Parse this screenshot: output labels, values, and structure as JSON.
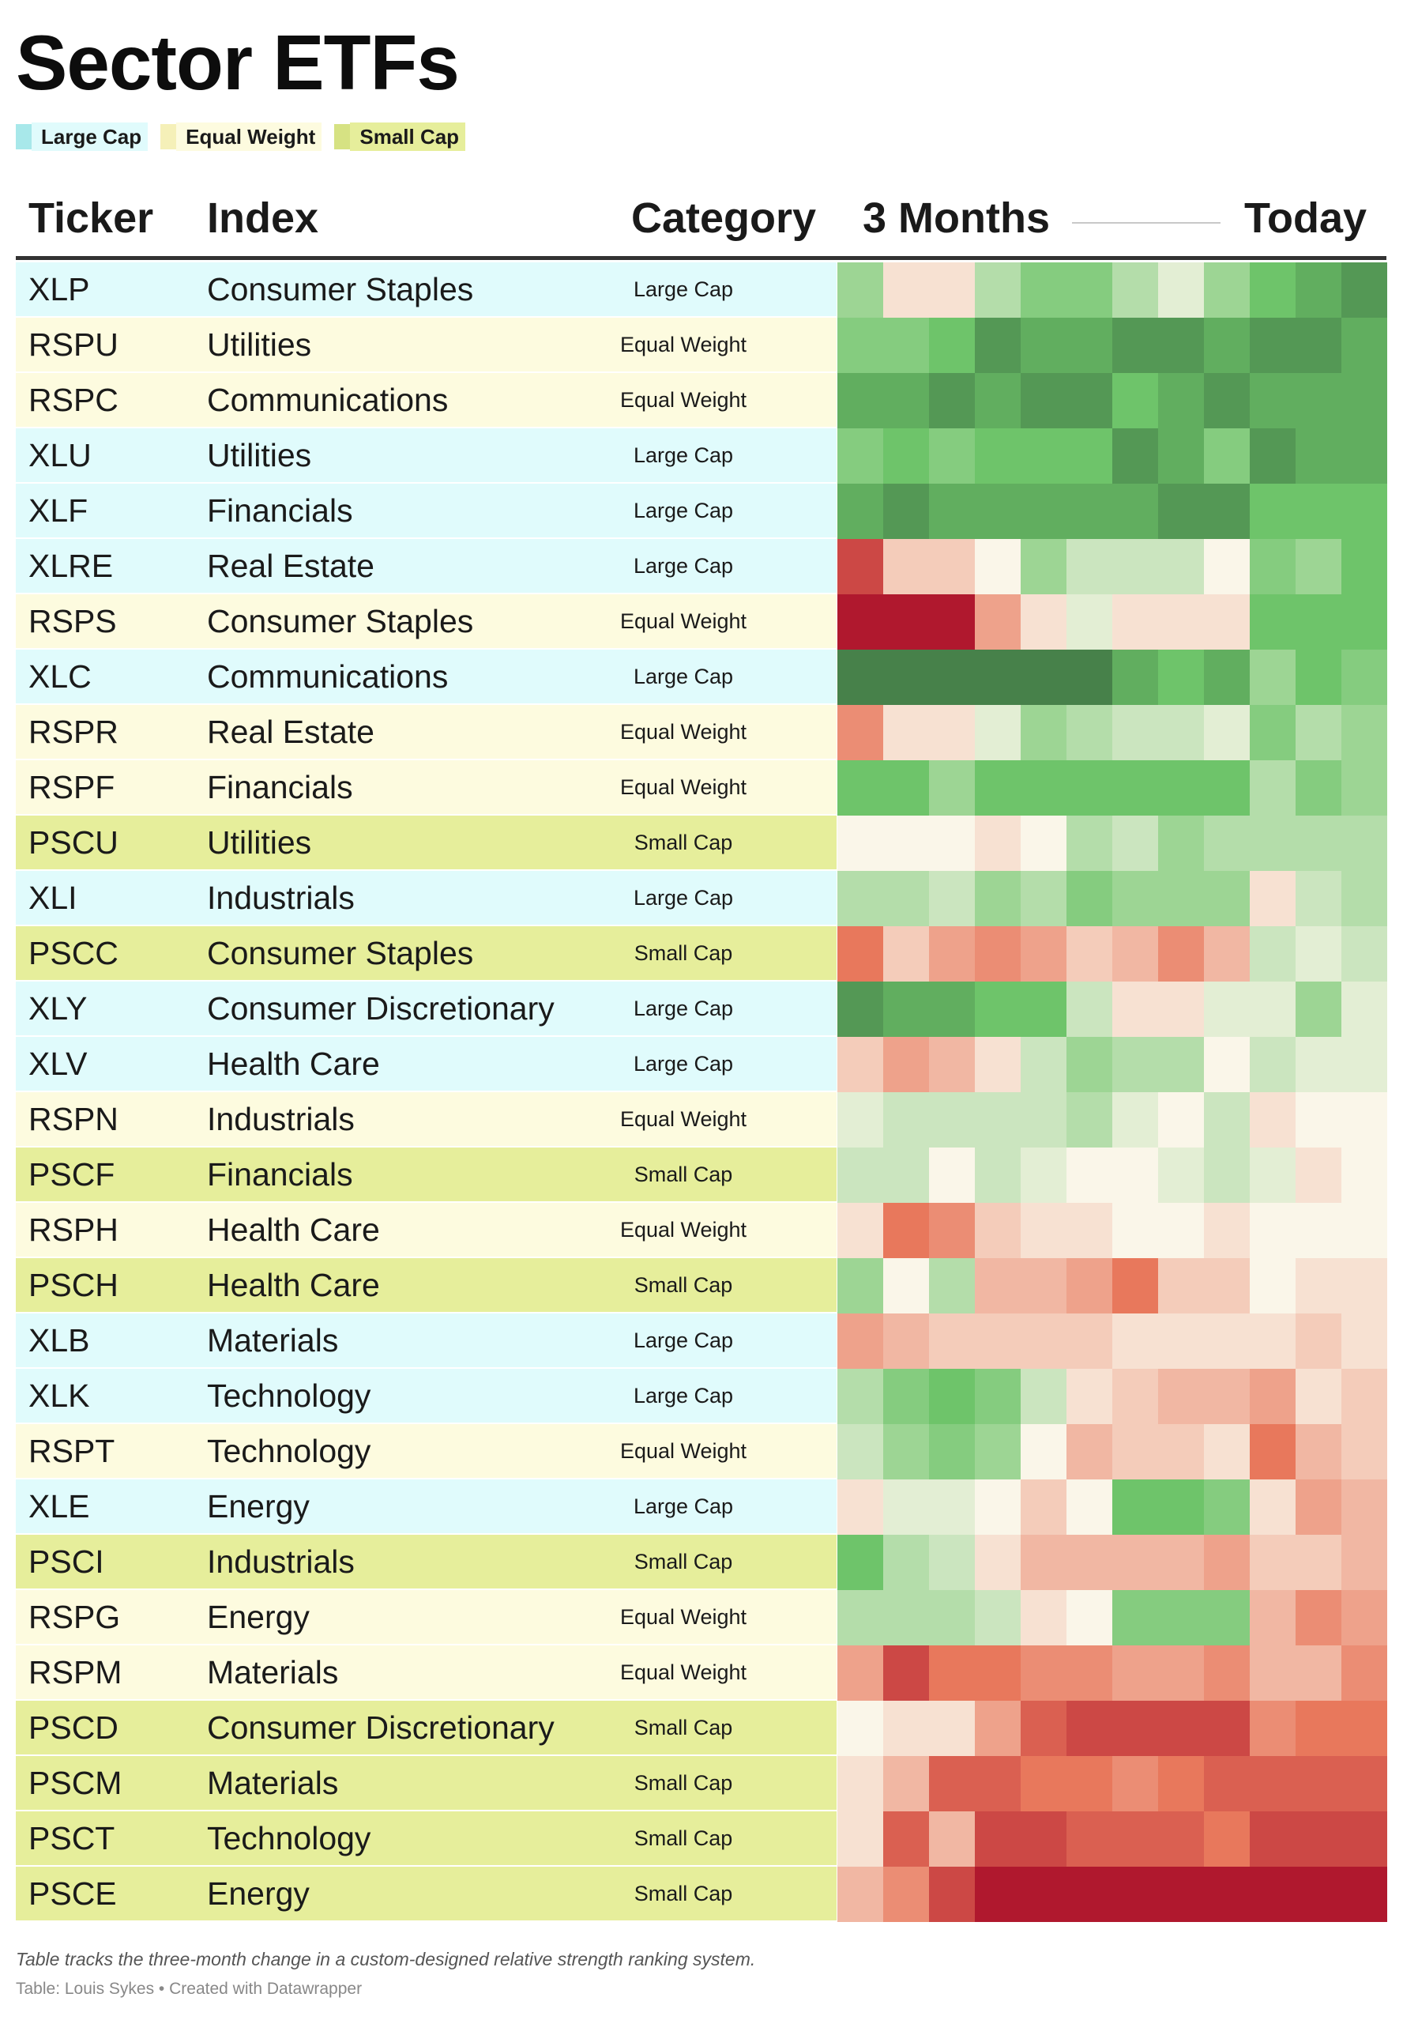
{
  "title": "Sector ETFs",
  "legend": [
    {
      "label": "Large Cap",
      "color": "#e0fbfc"
    },
    {
      "label": "Equal Weight",
      "color": "#fdfbdf"
    },
    {
      "label": "Small Cap",
      "color": "#e6ee9b"
    }
  ],
  "legend_swatch_colors": [
    "#a8e8ea",
    "#f5f0b8",
    "#d6e283"
  ],
  "columns": {
    "ticker": "Ticker",
    "index": "Index",
    "category": "Category",
    "start": "3 Months",
    "end": "Today"
  },
  "chart_data": {
    "type": "heatmap",
    "scale": "relative strength rank change over three months: green strongest, red weakest",
    "periods": 12,
    "rows": [
      {
        "ticker": "XLP",
        "index": "Consumer Staples",
        "category": "Large Cap",
        "values": [
          4,
          -1,
          -1,
          3,
          5,
          5,
          3,
          1,
          4,
          6,
          7,
          8
        ]
      },
      {
        "ticker": "RSPU",
        "index": "Utilities",
        "category": "Equal Weight",
        "values": [
          5,
          5,
          6,
          8,
          7,
          7,
          8,
          8,
          7,
          8,
          8,
          7
        ]
      },
      {
        "ticker": "RSPC",
        "index": "Communications",
        "category": "Equal Weight",
        "values": [
          7,
          7,
          8,
          7,
          8,
          8,
          6,
          7,
          8,
          7,
          7,
          7
        ]
      },
      {
        "ticker": "XLU",
        "index": "Utilities",
        "category": "Large Cap",
        "values": [
          5,
          6,
          5,
          6,
          6,
          6,
          8,
          7,
          5,
          8,
          7,
          7
        ]
      },
      {
        "ticker": "XLF",
        "index": "Financials",
        "category": "Large Cap",
        "values": [
          7,
          8,
          7,
          7,
          7,
          7,
          7,
          8,
          8,
          6,
          6,
          6
        ]
      },
      {
        "ticker": "XLRE",
        "index": "Real Estate",
        "category": "Large Cap",
        "values": [
          -8,
          -2,
          -2,
          0,
          4,
          2,
          2,
          2,
          0,
          5,
          4,
          6
        ]
      },
      {
        "ticker": "RSPS",
        "index": "Consumer Staples",
        "category": "Equal Weight",
        "values": [
          -10,
          -10,
          -10,
          -4,
          -1,
          1,
          -1,
          -1,
          -1,
          6,
          6,
          6
        ]
      },
      {
        "ticker": "XLC",
        "index": "Communications",
        "category": "Large Cap",
        "values": [
          9,
          9,
          9,
          9,
          9,
          9,
          7,
          6,
          7,
          4,
          6,
          5
        ]
      },
      {
        "ticker": "RSPR",
        "index": "Real Estate",
        "category": "Equal Weight",
        "values": [
          -5,
          -1,
          -1,
          1,
          4,
          3,
          2,
          2,
          1,
          5,
          3,
          4
        ]
      },
      {
        "ticker": "RSPF",
        "index": "Financials",
        "category": "Equal Weight",
        "values": [
          6,
          6,
          4,
          6,
          6,
          6,
          6,
          6,
          6,
          3,
          5,
          4
        ]
      },
      {
        "ticker": "PSCU",
        "index": "Utilities",
        "category": "Small Cap",
        "values": [
          0,
          0,
          0,
          -1,
          0,
          3,
          2,
          4,
          3,
          3,
          3,
          3
        ]
      },
      {
        "ticker": "XLI",
        "index": "Industrials",
        "category": "Large Cap",
        "values": [
          3,
          3,
          2,
          4,
          3,
          5,
          4,
          4,
          4,
          -1,
          2,
          3
        ]
      },
      {
        "ticker": "PSCC",
        "index": "Consumer Staples",
        "category": "Small Cap",
        "values": [
          -6,
          -2,
          -4,
          -5,
          -4,
          -2,
          -3,
          -5,
          -3,
          2,
          1,
          2
        ]
      },
      {
        "ticker": "XLY",
        "index": "Consumer Discretionary",
        "category": "Large Cap",
        "values": [
          8,
          7,
          7,
          6,
          6,
          2,
          -1,
          -1,
          1,
          1,
          4,
          1
        ]
      },
      {
        "ticker": "XLV",
        "index": "Health Care",
        "category": "Large Cap",
        "values": [
          -2,
          -4,
          -3,
          -1,
          2,
          4,
          3,
          3,
          0,
          2,
          1,
          1
        ]
      },
      {
        "ticker": "RSPN",
        "index": "Industrials",
        "category": "Equal Weight",
        "values": [
          1,
          2,
          2,
          2,
          2,
          3,
          1,
          0,
          2,
          -1,
          0,
          0
        ]
      },
      {
        "ticker": "PSCF",
        "index": "Financials",
        "category": "Small Cap",
        "values": [
          2,
          2,
          0,
          2,
          1,
          0,
          0,
          1,
          2,
          1,
          -1,
          0
        ]
      },
      {
        "ticker": "RSPH",
        "index": "Health Care",
        "category": "Equal Weight",
        "values": [
          -1,
          -6,
          -5,
          -2,
          -1,
          -1,
          0,
          0,
          -1,
          0,
          0,
          0
        ]
      },
      {
        "ticker": "PSCH",
        "index": "Health Care",
        "category": "Small Cap",
        "values": [
          4,
          0,
          3,
          -3,
          -3,
          -4,
          -6,
          -2,
          -2,
          0,
          -1,
          -1
        ]
      },
      {
        "ticker": "XLB",
        "index": "Materials",
        "category": "Large Cap",
        "values": [
          -4,
          -3,
          -2,
          -2,
          -2,
          -2,
          -1,
          -1,
          -1,
          -1,
          -2,
          -1
        ]
      },
      {
        "ticker": "XLK",
        "index": "Technology",
        "category": "Large Cap",
        "values": [
          3,
          5,
          6,
          5,
          2,
          -1,
          -2,
          -3,
          -3,
          -4,
          -1,
          -2
        ]
      },
      {
        "ticker": "RSPT",
        "index": "Technology",
        "category": "Equal Weight",
        "values": [
          2,
          4,
          5,
          4,
          0,
          -3,
          -2,
          -2,
          -1,
          -6,
          -3,
          -2
        ]
      },
      {
        "ticker": "XLE",
        "index": "Energy",
        "category": "Large Cap",
        "values": [
          -1,
          1,
          1,
          0,
          -2,
          0,
          6,
          6,
          5,
          -1,
          -4,
          -3
        ]
      },
      {
        "ticker": "PSCI",
        "index": "Industrials",
        "category": "Small Cap",
        "values": [
          6,
          3,
          2,
          -1,
          -3,
          -3,
          -3,
          -3,
          -4,
          -2,
          -2,
          -3
        ]
      },
      {
        "ticker": "RSPG",
        "index": "Energy",
        "category": "Equal Weight",
        "values": [
          3,
          3,
          3,
          2,
          -1,
          0,
          5,
          5,
          5,
          -3,
          -5,
          -4
        ]
      },
      {
        "ticker": "RSPM",
        "index": "Materials",
        "category": "Equal Weight",
        "values": [
          -4,
          -8,
          -6,
          -6,
          -5,
          -5,
          -4,
          -4,
          -5,
          -3,
          -3,
          -5
        ]
      },
      {
        "ticker": "PSCD",
        "index": "Consumer Discretionary",
        "category": "Small Cap",
        "values": [
          0,
          -1,
          -1,
          -4,
          -7,
          -8,
          -8,
          -8,
          -8,
          -5,
          -6,
          -6
        ]
      },
      {
        "ticker": "PSCM",
        "index": "Materials",
        "category": "Small Cap",
        "values": [
          -1,
          -3,
          -7,
          -7,
          -6,
          -6,
          -5,
          -6,
          -7,
          -7,
          -7,
          -7
        ]
      },
      {
        "ticker": "PSCT",
        "index": "Technology",
        "category": "Small Cap",
        "values": [
          -1,
          -7,
          -3,
          -8,
          -8,
          -7,
          -7,
          -7,
          -6,
          -8,
          -8,
          -8
        ]
      },
      {
        "ticker": "PSCE",
        "index": "Energy",
        "category": "Small Cap",
        "values": [
          -3,
          -5,
          -8,
          -10,
          -10,
          -10,
          -10,
          -10,
          -10,
          -10,
          -10,
          -10
        ]
      }
    ]
  },
  "note": "Table tracks the three-month change in a custom-designed relative strength ranking system.",
  "source": "Table: Louis Sykes • Created with Datawrapper"
}
